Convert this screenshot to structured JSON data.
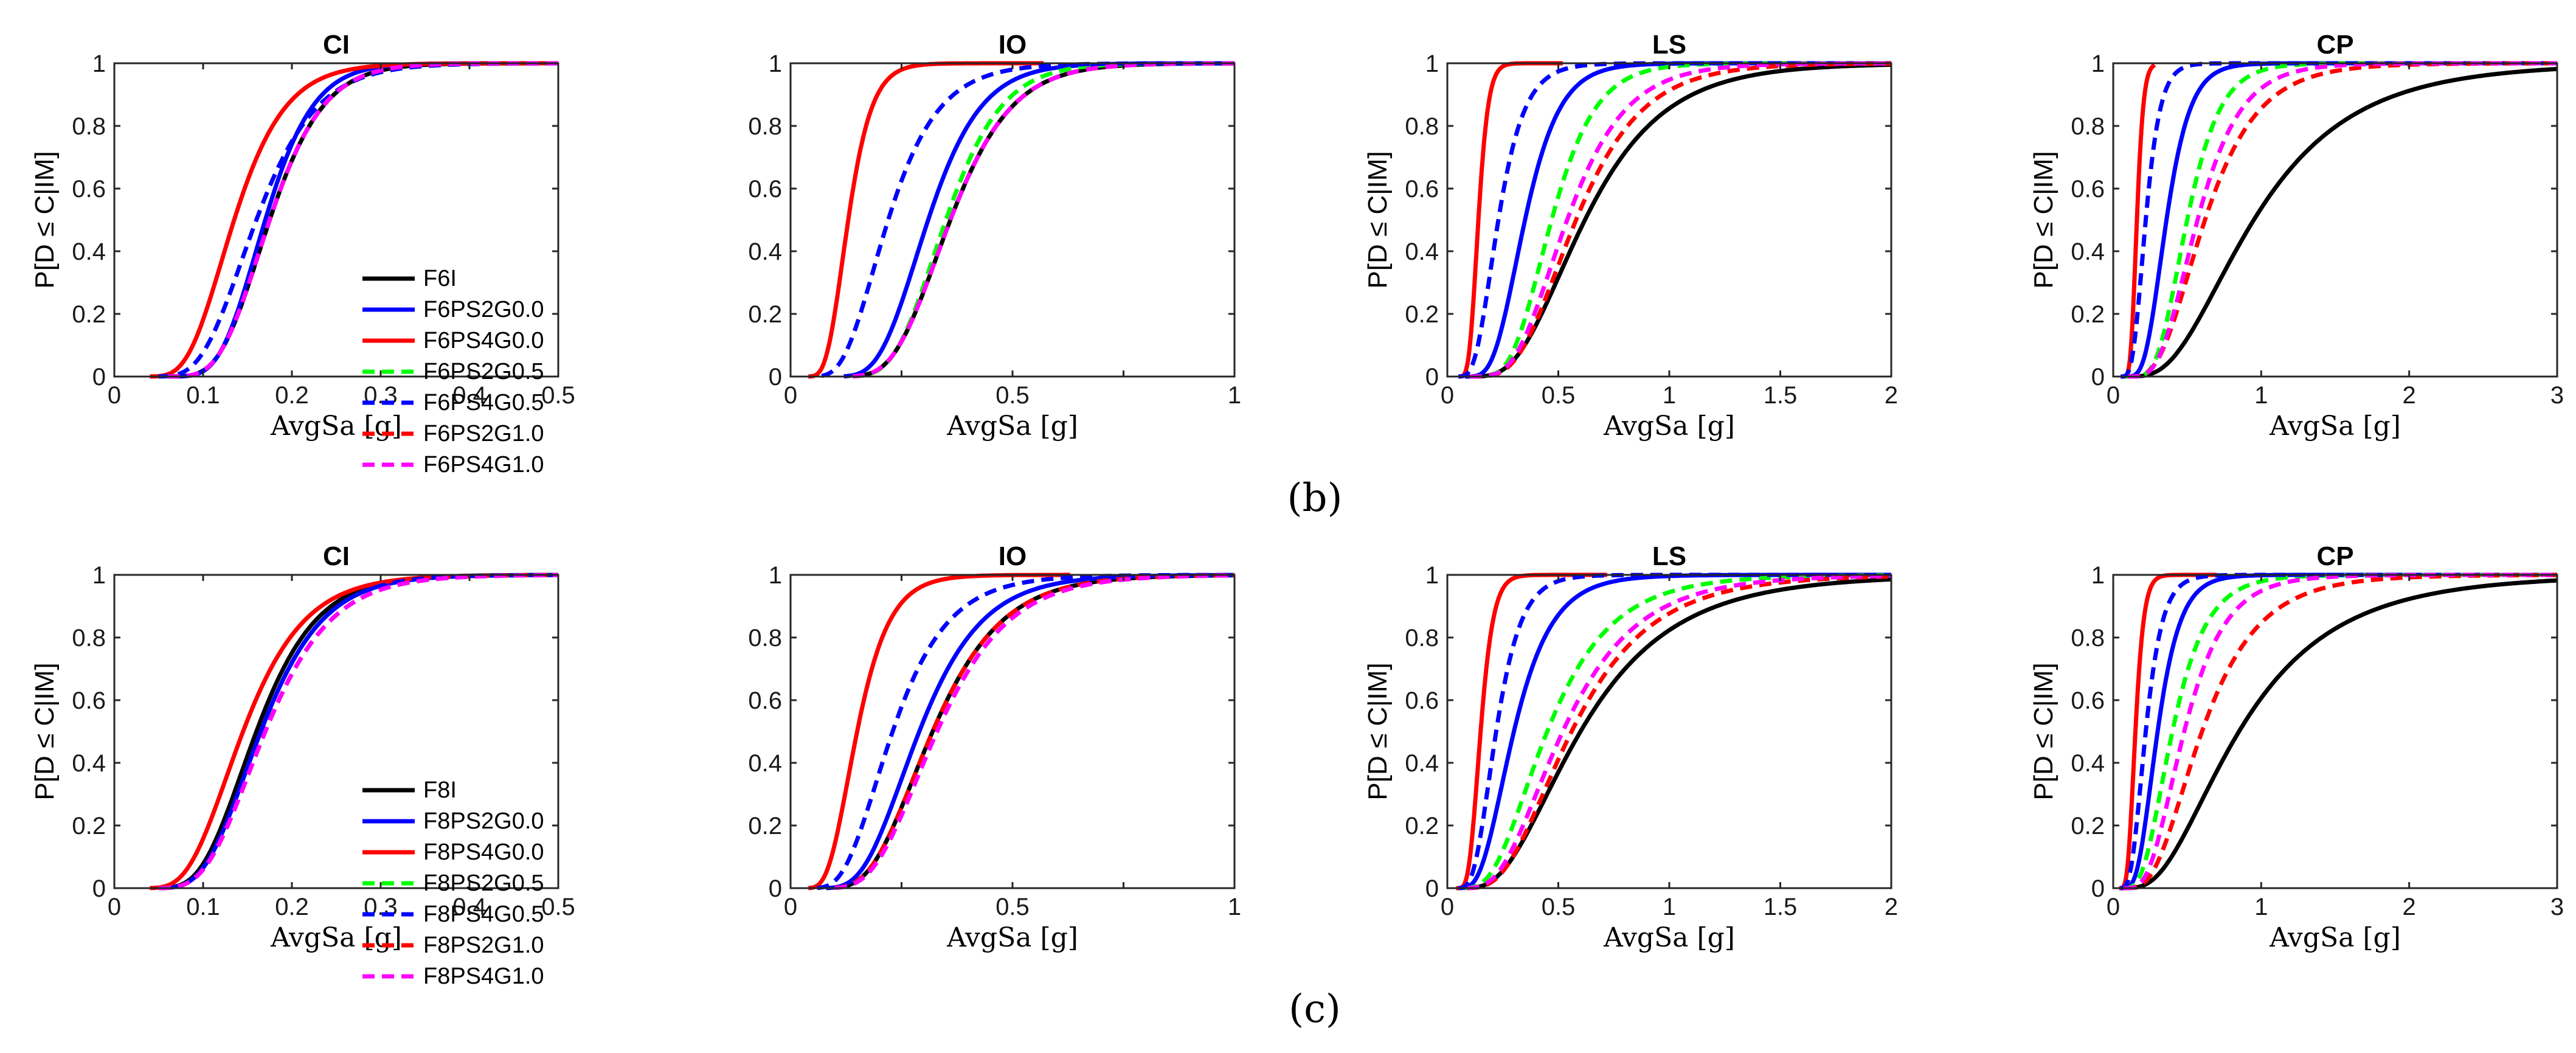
{
  "panels": [
    {
      "label": "(b)",
      "ylabel": "P[D ≤ C|IM]",
      "xlabel": "AvgSa [g]",
      "legend": [
        {
          "name": "F6I",
          "color": "#000000",
          "dash": false
        },
        {
          "name": "F6PS2G0.0",
          "color": "#0000ff",
          "dash": false
        },
        {
          "name": "F6PS4G0.0",
          "color": "#ff0000",
          "dash": false
        },
        {
          "name": "F6PS2G0.5",
          "color": "#00ff00",
          "dash": true
        },
        {
          "name": "F6PS4G0.5",
          "color": "#0000ff",
          "dash": true
        },
        {
          "name": "F6PS2G1.0",
          "color": "#ff0000",
          "dash": true
        },
        {
          "name": "F6PS4G1.0",
          "color": "#ff00ff",
          "dash": true
        }
      ]
    },
    {
      "label": "(c)",
      "ylabel": "P[D ≤ C|IM]",
      "xlabel": "AvgSa [g]",
      "legend": [
        {
          "name": "F8I",
          "color": "#000000",
          "dash": false
        },
        {
          "name": "F8PS2G0.0",
          "color": "#0000ff",
          "dash": false
        },
        {
          "name": "F8PS4G0.0",
          "color": "#ff0000",
          "dash": false
        },
        {
          "name": "F8PS2G0.5",
          "color": "#00ff00",
          "dash": true
        },
        {
          "name": "F8PS4G0.5",
          "color": "#0000ff",
          "dash": true
        },
        {
          "name": "F8PS2G1.0",
          "color": "#ff0000",
          "dash": true
        },
        {
          "name": "F8PS4G1.0",
          "color": "#ff00ff",
          "dash": true
        }
      ]
    }
  ],
  "chart_data": [
    {
      "type": "line",
      "panel": "(b)",
      "title": "CI",
      "xlabel": "AvgSa [g]",
      "ylabel": "P[D ≤ C|IM]",
      "xlim": [
        0,
        0.5
      ],
      "ylim": [
        0,
        1
      ],
      "xticks": [
        "0",
        "0.1",
        "0.2",
        "0.3",
        "0.4",
        "0.5"
      ],
      "yticks": [
        "0",
        "0.2",
        "0.4",
        "0.6",
        "0.8",
        "1"
      ],
      "series": [
        {
          "name": "F6I",
          "color": "#000000",
          "dash": false,
          "median": 0.175,
          "beta": 0.27,
          "xmin": 0.06,
          "xmax": 0.5
        },
        {
          "name": "F6PS2G0.0",
          "color": "#0000ff",
          "dash": false,
          "median": 0.17,
          "beta": 0.25,
          "xmin": 0.06,
          "xmax": 0.5
        },
        {
          "name": "F6PS4G0.0",
          "color": "#ff0000",
          "dash": false,
          "median": 0.135,
          "beta": 0.33,
          "xmin": 0.04,
          "xmax": 0.5
        },
        {
          "name": "F6PS2G0.5",
          "color": "#00ff00",
          "dash": true,
          "median": 0.175,
          "beta": 0.27,
          "xmin": 0.06,
          "xmax": 0.5
        },
        {
          "name": "F6PS4G0.5",
          "color": "#0000ff",
          "dash": true,
          "median": 0.16,
          "beta": 0.33,
          "xmin": 0.05,
          "xmax": 0.5
        },
        {
          "name": "F6PS2G1.0",
          "color": "#ff0000",
          "dash": true,
          "median": 0.175,
          "beta": 0.27,
          "xmin": 0.06,
          "xmax": 0.5
        },
        {
          "name": "F6PS4G1.0",
          "color": "#ff00ff",
          "dash": true,
          "median": 0.175,
          "beta": 0.27,
          "xmin": 0.06,
          "xmax": 0.5
        }
      ]
    },
    {
      "type": "line",
      "panel": "(b)",
      "title": "IO",
      "xlabel": "AvgSa [g]",
      "ylabel": "",
      "xlim": [
        0,
        1
      ],
      "ylim": [
        0,
        1
      ],
      "xticks": [
        "0",
        "",
        "0.5",
        "",
        "1"
      ],
      "yticks": [
        "0",
        "0.2",
        "0.4",
        "0.6",
        "0.8",
        "1"
      ],
      "series": [
        {
          "name": "F6I",
          "color": "#000000",
          "dash": false,
          "median": 0.36,
          "beta": 0.3,
          "xmin": 0.14,
          "xmax": 1
        },
        {
          "name": "F6PS2G0.0",
          "color": "#0000ff",
          "dash": false,
          "median": 0.31,
          "beta": 0.3,
          "xmin": 0.12,
          "xmax": 1
        },
        {
          "name": "F6PS4G0.0",
          "color": "#ff0000",
          "dash": false,
          "median": 0.13,
          "beta": 0.32,
          "xmin": 0.04,
          "xmax": 0.57
        },
        {
          "name": "F6PS2G0.5",
          "color": "#00ff00",
          "dash": true,
          "median": 0.35,
          "beta": 0.28,
          "xmin": 0.14,
          "xmax": 1
        },
        {
          "name": "F6PS4G0.5",
          "color": "#0000ff",
          "dash": true,
          "median": 0.22,
          "beta": 0.4,
          "xmin": 0.07,
          "xmax": 1
        },
        {
          "name": "F6PS2G1.0",
          "color": "#ff0000",
          "dash": true,
          "median": 0.36,
          "beta": 0.3,
          "xmin": 0.14,
          "xmax": 1
        },
        {
          "name": "F6PS4G1.0",
          "color": "#ff00ff",
          "dash": true,
          "median": 0.36,
          "beta": 0.3,
          "xmin": 0.14,
          "xmax": 1
        }
      ]
    },
    {
      "type": "line",
      "panel": "(b)",
      "title": "LS",
      "xlabel": "AvgSa [g]",
      "ylabel": "P[D ≤ C|IM]",
      "xlim": [
        0,
        2
      ],
      "ylim": [
        0,
        1
      ],
      "xticks": [
        "0",
        "0.5",
        "1",
        "1.5",
        "2"
      ],
      "yticks": [
        "0",
        "0.2",
        "0.4",
        "0.6",
        "0.8",
        "1"
      ],
      "series": [
        {
          "name": "F6I",
          "color": "#000000",
          "dash": false,
          "median": 0.62,
          "beta": 0.45,
          "xmin": 0.12,
          "xmax": 2
        },
        {
          "name": "F6PS2G0.0",
          "color": "#0000ff",
          "dash": false,
          "median": 0.35,
          "beta": 0.35,
          "xmin": 0.08,
          "xmax": 2
        },
        {
          "name": "F6PS4G0.0",
          "color": "#ff0000",
          "dash": false,
          "median": 0.14,
          "beta": 0.25,
          "xmin": 0.05,
          "xmax": 0.52
        },
        {
          "name": "F6PS2G0.5",
          "color": "#00ff00",
          "dash": true,
          "median": 0.47,
          "beta": 0.33,
          "xmin": 0.1,
          "xmax": 2
        },
        {
          "name": "F6PS4G0.5",
          "color": "#0000ff",
          "dash": true,
          "median": 0.23,
          "beta": 0.4,
          "xmin": 0.05,
          "xmax": 2
        },
        {
          "name": "F6PS2G1.0",
          "color": "#ff0000",
          "dash": true,
          "median": 0.58,
          "beta": 0.4,
          "xmin": 0.1,
          "xmax": 2
        },
        {
          "name": "F6PS4G1.0",
          "color": "#ff00ff",
          "dash": true,
          "median": 0.54,
          "beta": 0.38,
          "xmin": 0.1,
          "xmax": 2
        }
      ]
    },
    {
      "type": "line",
      "panel": "(b)",
      "title": "CP",
      "xlabel": "AvgSa [g]",
      "ylabel": "P[D ≤ C|IM]",
      "xlim": [
        0,
        3
      ],
      "ylim": [
        0,
        1
      ],
      "xticks": [
        "0",
        "1",
        "2",
        "3"
      ],
      "yticks": [
        "0",
        "0.2",
        "0.4",
        "0.6",
        "0.8",
        "1"
      ],
      "series": [
        {
          "name": "F6I",
          "color": "#000000",
          "dash": false,
          "median": 0.95,
          "beta": 0.55,
          "xmin": 0.15,
          "xmax": 3
        },
        {
          "name": "F6PS2G0.0",
          "color": "#0000ff",
          "dash": false,
          "median": 0.36,
          "beta": 0.35,
          "xmin": 0.06,
          "xmax": 3
        },
        {
          "name": "F6PS4G0.0",
          "color": "#ff0000",
          "dash": false,
          "median": 0.16,
          "beta": 0.22,
          "xmin": 0.05,
          "xmax": 0.28
        },
        {
          "name": "F6PS2G0.5",
          "color": "#00ff00",
          "dash": true,
          "median": 0.5,
          "beta": 0.35,
          "xmin": 0.08,
          "xmax": 3
        },
        {
          "name": "F6PS4G0.5",
          "color": "#0000ff",
          "dash": true,
          "median": 0.22,
          "beta": 0.35,
          "xmin": 0.05,
          "xmax": 3
        },
        {
          "name": "F6PS2G1.0",
          "color": "#ff0000",
          "dash": true,
          "median": 0.62,
          "beta": 0.45,
          "xmin": 0.1,
          "xmax": 3
        },
        {
          "name": "F6PS4G1.0",
          "color": "#ff00ff",
          "dash": true,
          "median": 0.57,
          "beta": 0.4,
          "xmin": 0.1,
          "xmax": 3
        }
      ]
    },
    {
      "type": "line",
      "panel": "(c)",
      "title": "CI",
      "xlabel": "AvgSa [g]",
      "ylabel": "P[D ≤ C|IM]",
      "xlim": [
        0,
        0.5
      ],
      "ylim": [
        0,
        1
      ],
      "xticks": [
        "0",
        "0.1",
        "0.2",
        "0.3",
        "0.4",
        "0.5"
      ],
      "yticks": [
        "0",
        "0.2",
        "0.4",
        "0.6",
        "0.8",
        "1"
      ],
      "series": [
        {
          "name": "F8I",
          "color": "#000000",
          "dash": false,
          "median": 0.16,
          "beta": 0.33,
          "xmin": 0.05,
          "xmax": 0.5
        },
        {
          "name": "F8PS2G0.0",
          "color": "#0000ff",
          "dash": false,
          "median": 0.165,
          "beta": 0.33,
          "xmin": 0.05,
          "xmax": 0.5
        },
        {
          "name": "F8PS4G0.0",
          "color": "#ff0000",
          "dash": false,
          "median": 0.145,
          "beta": 0.37,
          "xmin": 0.04,
          "xmax": 0.5
        },
        {
          "name": "F8PS2G0.5",
          "color": "#00ff00",
          "dash": true,
          "median": 0.165,
          "beta": 0.33,
          "xmin": 0.05,
          "xmax": 0.5
        },
        {
          "name": "F8PS4G0.5",
          "color": "#0000ff",
          "dash": true,
          "median": 0.165,
          "beta": 0.33,
          "xmin": 0.05,
          "xmax": 0.5
        },
        {
          "name": "F8PS2G1.0",
          "color": "#ff0000",
          "dash": true,
          "median": 0.17,
          "beta": 0.34,
          "xmin": 0.05,
          "xmax": 0.5
        },
        {
          "name": "F8PS4G1.0",
          "color": "#ff00ff",
          "dash": true,
          "median": 0.17,
          "beta": 0.34,
          "xmin": 0.05,
          "xmax": 0.5
        }
      ]
    },
    {
      "type": "line",
      "panel": "(c)",
      "title": "IO",
      "xlabel": "AvgSa [g]",
      "ylabel": "",
      "xlim": [
        0,
        1
      ],
      "ylim": [
        0,
        1
      ],
      "xticks": [
        "0",
        "",
        "0.5",
        "",
        "1"
      ],
      "yticks": [
        "0",
        "0.2",
        "0.4",
        "0.6",
        "0.8",
        "1"
      ],
      "series": [
        {
          "name": "F8I",
          "color": "#000000",
          "dash": false,
          "median": 0.32,
          "beta": 0.38,
          "xmin": 0.1,
          "xmax": 1
        },
        {
          "name": "F8PS2G0.0",
          "color": "#0000ff",
          "dash": false,
          "median": 0.29,
          "beta": 0.38,
          "xmin": 0.08,
          "xmax": 1
        },
        {
          "name": "F8PS4G0.0",
          "color": "#ff0000",
          "dash": false,
          "median": 0.15,
          "beta": 0.38,
          "xmin": 0.04,
          "xmax": 0.63
        },
        {
          "name": "F8PS2G0.5",
          "color": "#00ff00",
          "dash": true,
          "median": 0.32,
          "beta": 0.38,
          "xmin": 0.1,
          "xmax": 1
        },
        {
          "name": "F8PS4G0.5",
          "color": "#0000ff",
          "dash": true,
          "median": 0.23,
          "beta": 0.42,
          "xmin": 0.06,
          "xmax": 1
        },
        {
          "name": "F8PS2G1.0",
          "color": "#ff0000",
          "dash": true,
          "median": 0.32,
          "beta": 0.38,
          "xmin": 0.1,
          "xmax": 1
        },
        {
          "name": "F8PS4G1.0",
          "color": "#ff00ff",
          "dash": true,
          "median": 0.33,
          "beta": 0.38,
          "xmin": 0.1,
          "xmax": 1
        }
      ]
    },
    {
      "type": "line",
      "panel": "(c)",
      "title": "LS",
      "xlabel": "AvgSa [g]",
      "ylabel": "P[D ≤ C|IM]",
      "xlim": [
        0,
        2
      ],
      "ylim": [
        0,
        1
      ],
      "xticks": [
        "0",
        "0.5",
        "1",
        "1.5",
        "2"
      ],
      "yticks": [
        "0",
        "0.2",
        "0.4",
        "0.6",
        "0.8",
        "1"
      ],
      "series": [
        {
          "name": "F8I",
          "color": "#000000",
          "dash": false,
          "median": 0.6,
          "beta": 0.55,
          "xmin": 0.1,
          "xmax": 2
        },
        {
          "name": "F8PS2G0.0",
          "color": "#0000ff",
          "dash": false,
          "median": 0.3,
          "beta": 0.45,
          "xmin": 0.06,
          "xmax": 2
        },
        {
          "name": "F8PS4G0.0",
          "color": "#ff0000",
          "dash": false,
          "median": 0.15,
          "beta": 0.3,
          "xmin": 0.04,
          "xmax": 0.72
        },
        {
          "name": "F8PS2G0.5",
          "color": "#00ff00",
          "dash": true,
          "median": 0.45,
          "beta": 0.5,
          "xmin": 0.08,
          "xmax": 2
        },
        {
          "name": "F8PS4G0.5",
          "color": "#0000ff",
          "dash": true,
          "median": 0.22,
          "beta": 0.4,
          "xmin": 0.05,
          "xmax": 2
        },
        {
          "name": "F8PS2G1.0",
          "color": "#ff0000",
          "dash": true,
          "median": 0.56,
          "beta": 0.5,
          "xmin": 0.09,
          "xmax": 2
        },
        {
          "name": "F8PS4G1.0",
          "color": "#ff00ff",
          "dash": true,
          "median": 0.52,
          "beta": 0.5,
          "xmin": 0.09,
          "xmax": 2
        }
      ]
    },
    {
      "type": "line",
      "panel": "(c)",
      "title": "CP",
      "xlabel": "AvgSa [g]",
      "ylabel": "P[D ≤ C|IM]",
      "xlim": [
        0,
        3
      ],
      "ylim": [
        0,
        1
      ],
      "xticks": [
        "0",
        "1",
        "2",
        "3"
      ],
      "yticks": [
        "0",
        "0.2",
        "0.4",
        "0.6",
        "0.8",
        "1"
      ],
      "series": [
        {
          "name": "F8I",
          "color": "#000000",
          "dash": false,
          "median": 0.85,
          "beta": 0.6,
          "xmin": 0.12,
          "xmax": 3
        },
        {
          "name": "F8PS2G0.0",
          "color": "#0000ff",
          "dash": false,
          "median": 0.3,
          "beta": 0.4,
          "xmin": 0.05,
          "xmax": 3
        },
        {
          "name": "F8PS4G0.0",
          "color": "#ff0000",
          "dash": false,
          "median": 0.15,
          "beta": 0.3,
          "xmin": 0.04,
          "xmax": 0.7
        },
        {
          "name": "F8PS2G0.5",
          "color": "#00ff00",
          "dash": true,
          "median": 0.4,
          "beta": 0.45,
          "xmin": 0.07,
          "xmax": 3
        },
        {
          "name": "F8PS4G0.5",
          "color": "#0000ff",
          "dash": true,
          "median": 0.22,
          "beta": 0.4,
          "xmin": 0.05,
          "xmax": 3
        },
        {
          "name": "F8PS2G1.0",
          "color": "#ff0000",
          "dash": true,
          "median": 0.6,
          "beta": 0.5,
          "xmin": 0.08,
          "xmax": 3
        },
        {
          "name": "F8PS4G1.0",
          "color": "#ff00ff",
          "dash": true,
          "median": 0.48,
          "beta": 0.45,
          "xmin": 0.07,
          "xmax": 3
        }
      ]
    }
  ]
}
